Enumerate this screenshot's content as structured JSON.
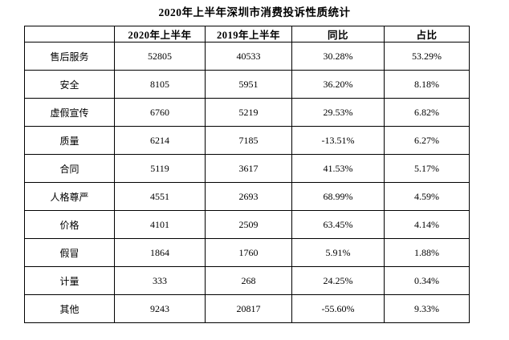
{
  "page": {
    "title": "2020年上半年深圳市消费投诉性质统计"
  },
  "table": {
    "headers": [
      "",
      "2020年上半年",
      "2019年上半年",
      "同比",
      "占比"
    ],
    "rows": [
      [
        "售后服务",
        "52805",
        "40533",
        "30.28%",
        "53.29%"
      ],
      [
        "安全",
        "8105",
        "5951",
        "36.20%",
        "8.18%"
      ],
      [
        "虚假宣传",
        "6760",
        "5219",
        "29.53%",
        "6.82%"
      ],
      [
        "质量",
        "6214",
        "7185",
        "-13.51%",
        "6.27%"
      ],
      [
        "合同",
        "5119",
        "3617",
        "41.53%",
        "5.17%"
      ],
      [
        "人格尊严",
        "4551",
        "2693",
        "68.99%",
        "4.59%"
      ],
      [
        "价格",
        "4101",
        "2509",
        "63.45%",
        "4.14%"
      ],
      [
        "假冒",
        "1864",
        "1760",
        "5.91%",
        "1.88%"
      ],
      [
        "计量",
        "333",
        "268",
        "24.25%",
        "0.34%"
      ],
      [
        "其他",
        "9243",
        "20817",
        "-55.60%",
        "9.33%"
      ]
    ]
  },
  "colors": {
    "text": "#000000",
    "border": "#000000",
    "background": "#ffffff"
  },
  "chart_data": {
    "type": "table",
    "title": "2020年上半年深圳市消费投诉性质统计",
    "columns": [
      "",
      "2020年上半年",
      "2019年上半年",
      "同比",
      "占比"
    ],
    "categories": [
      "售后服务",
      "安全",
      "虚假宣传",
      "质量",
      "合同",
      "人格尊严",
      "价格",
      "假冒",
      "计量",
      "其他"
    ],
    "series": [
      {
        "name": "2020年上半年",
        "values": [
          52805,
          8105,
          6760,
          6214,
          5119,
          4551,
          4101,
          1864,
          333,
          9243
        ]
      },
      {
        "name": "2019年上半年",
        "values": [
          40533,
          5951,
          5219,
          7185,
          3617,
          2693,
          2509,
          1760,
          268,
          20817
        ]
      },
      {
        "name": "同比",
        "values": [
          "30.28%",
          "36.20%",
          "29.53%",
          "-13.51%",
          "41.53%",
          "68.99%",
          "63.45%",
          "5.91%",
          "24.25%",
          "-55.60%"
        ]
      },
      {
        "name": "占比",
        "values": [
          "53.29%",
          "8.18%",
          "6.82%",
          "6.27%",
          "5.17%",
          "4.59%",
          "4.14%",
          "1.88%",
          "0.34%",
          "9.33%"
        ]
      }
    ]
  }
}
